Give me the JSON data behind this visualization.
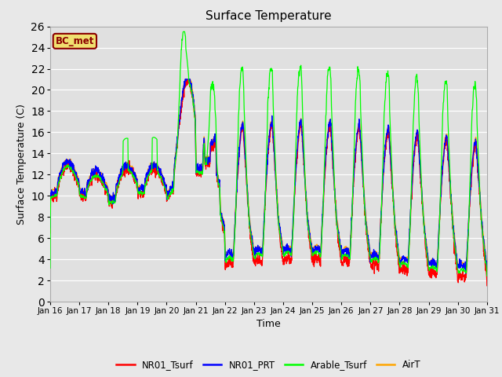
{
  "title": "Surface Temperature",
  "xlabel": "Time",
  "ylabel": "Surface Temperature (C)",
  "ylim": [
    0,
    26
  ],
  "xlim": [
    0,
    360
  ],
  "bg_color": "#e8e8e8",
  "plot_bg_color": "#e0e0e0",
  "grid_color": "#ffffff",
  "station_label": "BC_met",
  "station_label_bg": "#f0e070",
  "station_label_border": "#8B0000",
  "x_tick_labels": [
    "Jan 16",
    "Jan 17",
    "Jan 18",
    "Jan 19",
    "Jan 20",
    "Jan 21",
    "Jan 22",
    "Jan 23",
    "Jan 24",
    "Jan 25",
    "Jan 26",
    "Jan 27",
    "Jan 28",
    "Jan 29",
    "Jan 30",
    "Jan 31"
  ],
  "x_tick_positions": [
    0,
    24,
    48,
    72,
    96,
    120,
    144,
    168,
    192,
    216,
    240,
    264,
    288,
    312,
    336,
    360
  ],
  "lines": {
    "NR01_Tsurf": {
      "color": "#ff0000",
      "lw": 0.9
    },
    "NR01_PRT": {
      "color": "#0000ff",
      "lw": 0.9
    },
    "Arable_Tsurf": {
      "color": "#00ff00",
      "lw": 0.9
    },
    "AirT": {
      "color": "#ffa500",
      "lw": 0.9
    }
  },
  "font_family": "DejaVu Sans",
  "title_fontsize": 11,
  "label_fontsize": 9,
  "tick_fontsize": 7.5,
  "legend_fontsize": 8.5
}
